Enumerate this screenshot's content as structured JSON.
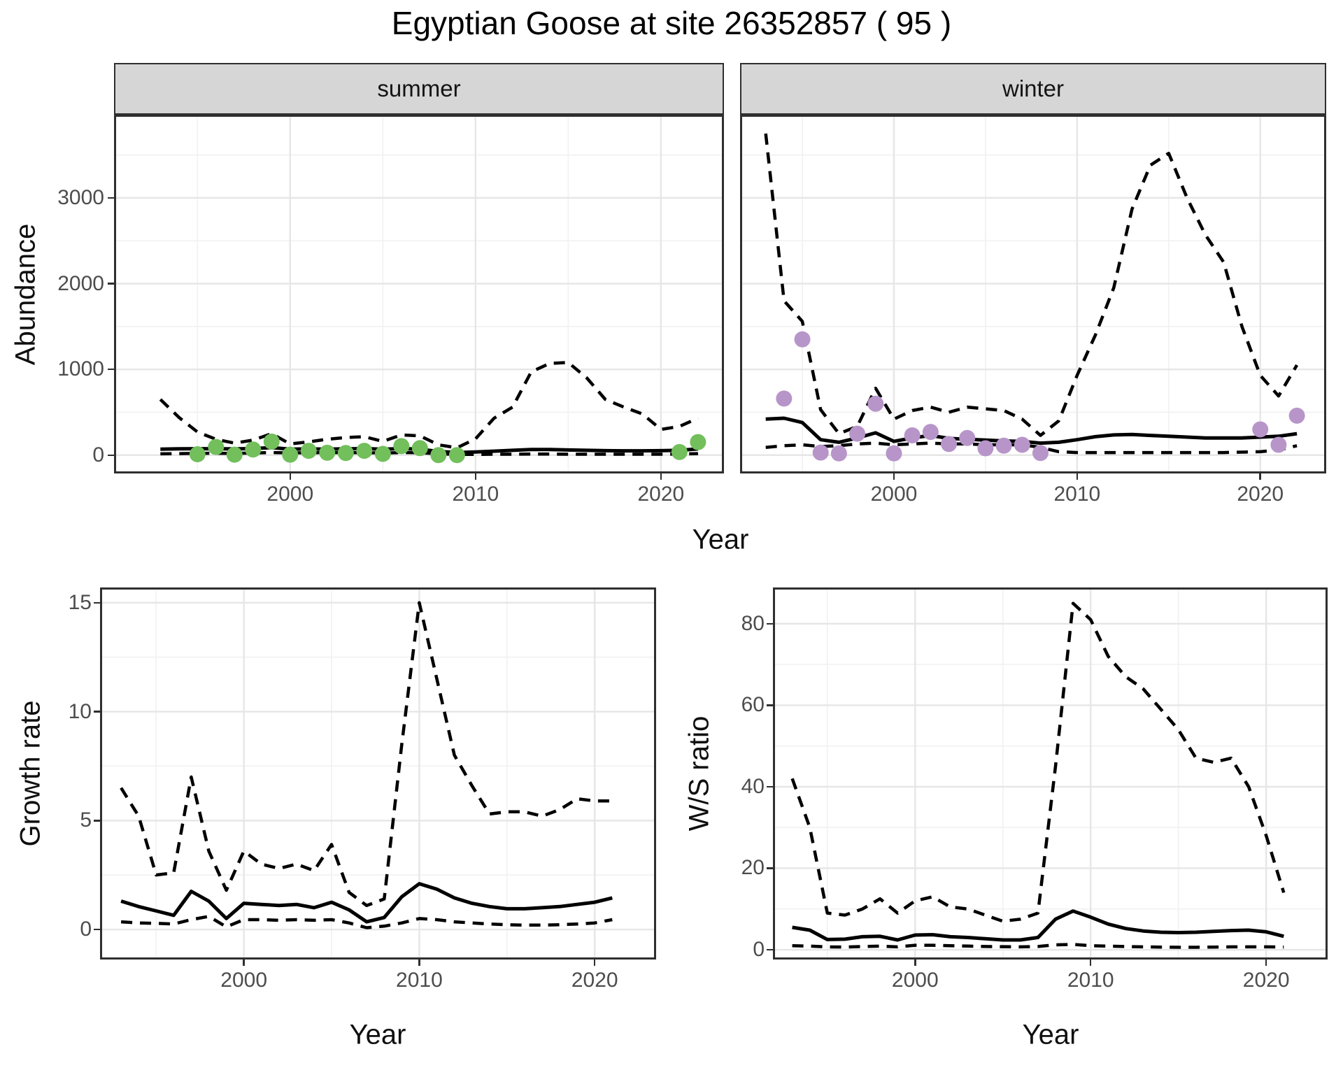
{
  "title": "Egyptian Goose at site 26352857 ( 95 )",
  "labels": {
    "abundance": "Abundance",
    "year": "Year",
    "growth": "Growth rate",
    "ws": "W/S ratio"
  },
  "facets": [
    "summer",
    "winter"
  ],
  "colors": {
    "summer_point": "#72bf5c",
    "winter_point": "#b795c9",
    "line": "#000000",
    "strip_bg": "#d6d6d6",
    "grid_major": "#e6e6e6",
    "grid_minor": "#f2f2f2",
    "panel_border": "#2f2f2f",
    "tick_text": "#4d4d4d"
  },
  "chart_data": [
    {
      "id": "abundance_summer",
      "type": "line",
      "facet": "summer",
      "ylabel": "Abundance",
      "xlabel": "Year",
      "xlim": [
        1990.5,
        2023.4
      ],
      "ylim": [
        -214,
        3970
      ],
      "xticks": [
        2000,
        2010,
        2020
      ],
      "xticks_minor": [
        1995,
        2005,
        2015
      ],
      "yticks": [
        0,
        1000,
        2000,
        3000
      ],
      "yticks_minor": [
        500,
        1500,
        2500,
        3500
      ],
      "x": [
        1993,
        1994,
        1995,
        1996,
        1997,
        1998,
        1999,
        2000,
        2001,
        2002,
        2003,
        2004,
        2005,
        2006,
        2007,
        2008,
        2009,
        2010,
        2011,
        2012,
        2013,
        2014,
        2015,
        2016,
        2017,
        2018,
        2019,
        2020,
        2021,
        2022
      ],
      "series": [
        {
          "name": "upper_ci",
          "style": "dashed",
          "values": [
            650,
            440,
            270,
            185,
            140,
            175,
            250,
            130,
            155,
            185,
            205,
            215,
            160,
            235,
            225,
            120,
            85,
            190,
            430,
            560,
            970,
            1070,
            1080,
            900,
            650,
            560,
            480,
            300,
            335,
            430
          ]
        },
        {
          "name": "lower_ci",
          "style": "dashed",
          "values": [
            15,
            18,
            20,
            22,
            20,
            25,
            30,
            25,
            28,
            28,
            28,
            28,
            25,
            30,
            28,
            15,
            8,
            8,
            10,
            10,
            12,
            12,
            10,
            10,
            10,
            10,
            10,
            10,
            12,
            18
          ]
        },
        {
          "name": "estimate",
          "style": "solid",
          "values": [
            70,
            73,
            75,
            75,
            72,
            76,
            88,
            70,
            72,
            70,
            73,
            76,
            68,
            76,
            70,
            42,
            30,
            36,
            46,
            56,
            66,
            66,
            60,
            56,
            52,
            50,
            50,
            52,
            56,
            72
          ]
        }
      ],
      "points": {
        "x": [
          1995,
          1996,
          1997,
          1998,
          1999,
          2000,
          2001,
          2002,
          2003,
          2004,
          2005,
          2006,
          2007,
          2008,
          2009,
          2021,
          2022
        ],
        "y": [
          10,
          95,
          5,
          65,
          158,
          5,
          50,
          28,
          25,
          50,
          14,
          105,
          82,
          0,
          0,
          36,
          152
        ],
        "color": "#72bf5c"
      }
    },
    {
      "id": "abundance_winter",
      "type": "line",
      "facet": "winter",
      "ylabel": "Abundance",
      "xlabel": "Year",
      "xlim": [
        1991.6,
        2023.6
      ],
      "ylim": [
        -214,
        3970
      ],
      "xticks": [
        2000,
        2010,
        2020
      ],
      "xticks_minor": [
        1995,
        2005,
        2015
      ],
      "yticks": [
        0,
        1000,
        2000,
        3000
      ],
      "yticks_minor": [
        500,
        1500,
        2500,
        3500
      ],
      "x": [
        1993,
        1994,
        1995,
        1996,
        1997,
        1998,
        1999,
        2000,
        2001,
        2002,
        2003,
        2004,
        2005,
        2006,
        2007,
        2008,
        2009,
        2010,
        2011,
        2012,
        2013,
        2014,
        2015,
        2016,
        2017,
        2018,
        2019,
        2020,
        2021,
        2022
      ],
      "series": [
        {
          "name": "upper_ci",
          "style": "dashed",
          "values": [
            3750,
            1800,
            1560,
            530,
            250,
            335,
            780,
            420,
            520,
            560,
            500,
            560,
            540,
            520,
            420,
            230,
            400,
            930,
            1400,
            1950,
            2870,
            3380,
            3520,
            3000,
            2570,
            2250,
            1500,
            930,
            690,
            1050
          ]
        },
        {
          "name": "lower_ci",
          "style": "dashed",
          "values": [
            90,
            110,
            120,
            100,
            110,
            130,
            140,
            120,
            130,
            140,
            130,
            130,
            120,
            120,
            120,
            90,
            40,
            30,
            30,
            30,
            30,
            30,
            30,
            30,
            30,
            30,
            35,
            40,
            60,
            110
          ]
        },
        {
          "name": "estimate",
          "style": "solid",
          "values": [
            420,
            430,
            380,
            180,
            150,
            200,
            260,
            160,
            200,
            230,
            195,
            185,
            175,
            165,
            160,
            140,
            150,
            180,
            215,
            235,
            240,
            230,
            220,
            210,
            200,
            200,
            200,
            210,
            220,
            250
          ]
        }
      ],
      "points": {
        "x": [
          1994,
          1995,
          1996,
          1997,
          1998,
          1999,
          2000,
          2001,
          2002,
          2003,
          2004,
          2005,
          2006,
          2007,
          2008,
          2020,
          2021,
          2022
        ],
        "y": [
          660,
          1350,
          30,
          20,
          250,
          600,
          20,
          230,
          270,
          130,
          200,
          80,
          110,
          120,
          25,
          300,
          120,
          460
        ],
        "color": "#b795c9"
      }
    },
    {
      "id": "growth_rate",
      "type": "line",
      "ylabel": "Growth rate",
      "xlabel": "Year",
      "xlim": [
        1991.8,
        2023.5
      ],
      "ylim": [
        -1.38,
        15.7
      ],
      "xticks": [
        2000,
        2010,
        2020
      ],
      "xticks_minor": [
        1995,
        2005,
        2015
      ],
      "yticks": [
        0,
        5,
        10,
        15
      ],
      "yticks_minor": [
        2.5,
        7.5,
        12.5
      ],
      "x": [
        1993,
        1994,
        1995,
        1996,
        1997,
        1998,
        1999,
        2000,
        2001,
        2002,
        2003,
        2004,
        2005,
        2006,
        2007,
        2008,
        2009,
        2010,
        2011,
        2012,
        2013,
        2014,
        2015,
        2016,
        2017,
        2018,
        2019,
        2020,
        2021
      ],
      "series": [
        {
          "name": "upper_ci",
          "style": "dashed",
          "values": [
            6.5,
            5.2,
            2.5,
            2.6,
            7.0,
            3.6,
            1.8,
            3.6,
            3.0,
            2.8,
            3.0,
            2.7,
            3.9,
            1.7,
            1.1,
            1.4,
            8.5,
            15.0,
            11.5,
            8.0,
            6.6,
            5.3,
            5.4,
            5.4,
            5.2,
            5.5,
            6.0,
            5.9,
            5.9
          ]
        },
        {
          "name": "lower_ci",
          "style": "dashed",
          "values": [
            0.35,
            0.3,
            0.28,
            0.25,
            0.45,
            0.6,
            0.12,
            0.45,
            0.45,
            0.42,
            0.45,
            0.42,
            0.45,
            0.3,
            0.08,
            0.15,
            0.3,
            0.5,
            0.45,
            0.35,
            0.3,
            0.25,
            0.22,
            0.2,
            0.2,
            0.22,
            0.25,
            0.3,
            0.45
          ]
        },
        {
          "name": "estimate",
          "style": "solid",
          "values": [
            1.3,
            1.05,
            0.85,
            0.65,
            1.75,
            1.3,
            0.5,
            1.2,
            1.15,
            1.1,
            1.15,
            1.0,
            1.25,
            0.9,
            0.35,
            0.55,
            1.5,
            2.1,
            1.85,
            1.45,
            1.2,
            1.05,
            0.95,
            0.95,
            1.0,
            1.05,
            1.15,
            1.25,
            1.45
          ]
        }
      ]
    },
    {
      "id": "ws_ratio",
      "type": "line",
      "ylabel": "W/S ratio",
      "xlabel": "Year",
      "xlim": [
        1991.9,
        2023.5
      ],
      "ylim": [
        -2.4,
        88.9
      ],
      "xticks": [
        2000,
        2010,
        2020
      ],
      "xticks_minor": [
        1995,
        2005,
        2015
      ],
      "yticks": [
        0,
        20,
        40,
        60,
        80
      ],
      "yticks_minor": [
        10,
        30,
        50,
        70
      ],
      "x": [
        1993,
        1994,
        1995,
        1996,
        1997,
        1998,
        1999,
        2000,
        2001,
        2002,
        2003,
        2004,
        2005,
        2006,
        2007,
        2008,
        2009,
        2010,
        2011,
        2012,
        2013,
        2014,
        2015,
        2016,
        2017,
        2018,
        2019,
        2020,
        2021
      ],
      "series": [
        {
          "name": "upper_ci",
          "style": "dashed",
          "values": [
            42,
            30,
            9,
            8.5,
            10,
            12.5,
            9,
            12,
            13,
            10.5,
            10,
            8.5,
            7,
            7.5,
            9,
            45,
            85,
            81,
            72,
            67,
            64,
            59,
            54,
            47,
            46,
            47,
            40,
            28,
            14
          ]
        },
        {
          "name": "lower_ci",
          "style": "dashed",
          "values": [
            1.0,
            0.9,
            0.7,
            0.65,
            0.8,
            0.9,
            0.7,
            1.1,
            1.1,
            1.0,
            0.9,
            0.8,
            0.75,
            0.7,
            0.8,
            1.2,
            1.3,
            1.0,
            0.9,
            0.8,
            0.7,
            0.65,
            0.6,
            0.6,
            0.65,
            0.7,
            0.7,
            0.7,
            0.65
          ]
        },
        {
          "name": "estimate",
          "style": "solid",
          "values": [
            5.5,
            4.8,
            2.5,
            2.6,
            3.2,
            3.3,
            2.4,
            3.6,
            3.7,
            3.2,
            3.0,
            2.7,
            2.4,
            2.4,
            3.0,
            7.5,
            9.5,
            8.0,
            6.3,
            5.2,
            4.6,
            4.3,
            4.2,
            4.3,
            4.5,
            4.7,
            4.8,
            4.4,
            3.3
          ]
        }
      ]
    }
  ]
}
